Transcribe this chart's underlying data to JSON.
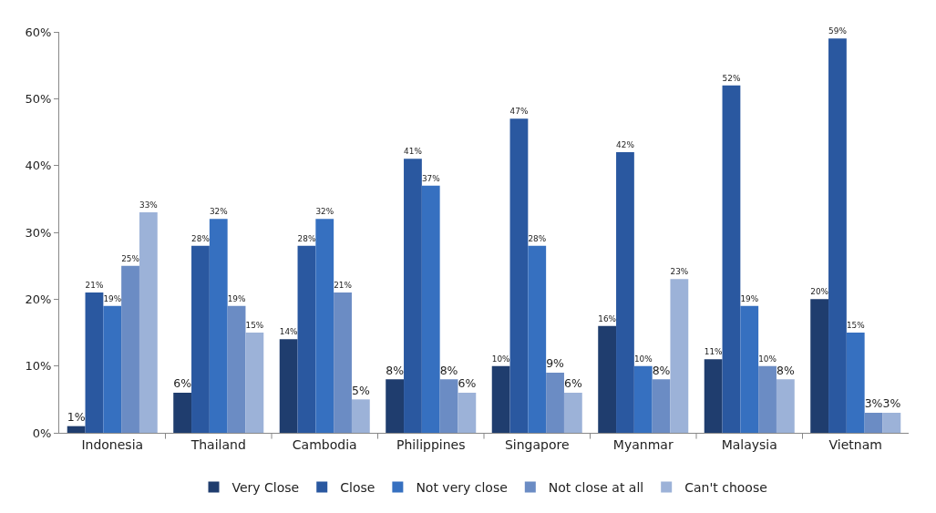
{
  "chart_data": {
    "type": "bar",
    "categories": [
      "Indonesia",
      "Thailand",
      "Cambodia",
      "Philippines",
      "Singapore",
      "Myanmar",
      "Malaysia",
      "Vietnam"
    ],
    "series": [
      {
        "name": "Very Close",
        "color": "#1f3d6e",
        "values": [
          1,
          6,
          14,
          8,
          10,
          16,
          11,
          20
        ],
        "value_labels": [
          "1%",
          "6%",
          "14%",
          "8%",
          "10%",
          "16%",
          "11%",
          "20%"
        ]
      },
      {
        "name": "Close",
        "color": "#2a58a0",
        "values": [
          21,
          28,
          28,
          41,
          47,
          42,
          52,
          59
        ],
        "value_labels": [
          "21%",
          "28%",
          "28%",
          "41%",
          "47%",
          "42%",
          "52%",
          "59%"
        ]
      },
      {
        "name": "Not very close",
        "color": "#3670c0",
        "values": [
          19,
          32,
          32,
          37,
          28,
          10,
          19,
          15
        ],
        "value_labels": [
          "19%",
          "32%",
          "32%",
          "37%",
          "28%",
          "10%",
          "19%",
          "15%"
        ]
      },
      {
        "name": "Not close at all",
        "color": "#6b8cc4",
        "values": [
          25,
          19,
          21,
          8,
          9,
          8,
          10,
          3
        ],
        "value_labels": [
          "25%",
          "19%",
          "21%",
          "8%",
          "9%",
          "8%",
          "10%",
          "3%"
        ]
      },
      {
        "name": "Can't choose",
        "color": "#9cb2d8",
        "values": [
          33,
          15,
          5,
          6,
          6,
          23,
          8,
          3
        ],
        "value_labels": [
          "33%",
          "15%",
          "5%",
          "6%",
          "6%",
          "23%",
          "8%",
          "3%"
        ]
      }
    ],
    "ylim": [
      0,
      60
    ],
    "yticks": [
      {
        "value": 0,
        "label": "0%"
      },
      {
        "value": 10,
        "label": "10%"
      },
      {
        "value": 20,
        "label": "20%"
      },
      {
        "value": 30,
        "label": "30%"
      },
      {
        "value": 40,
        "label": "40%"
      },
      {
        "value": 50,
        "label": "50%"
      },
      {
        "value": 60,
        "label": "60%"
      }
    ],
    "grid": false,
    "legend": "bottom"
  }
}
